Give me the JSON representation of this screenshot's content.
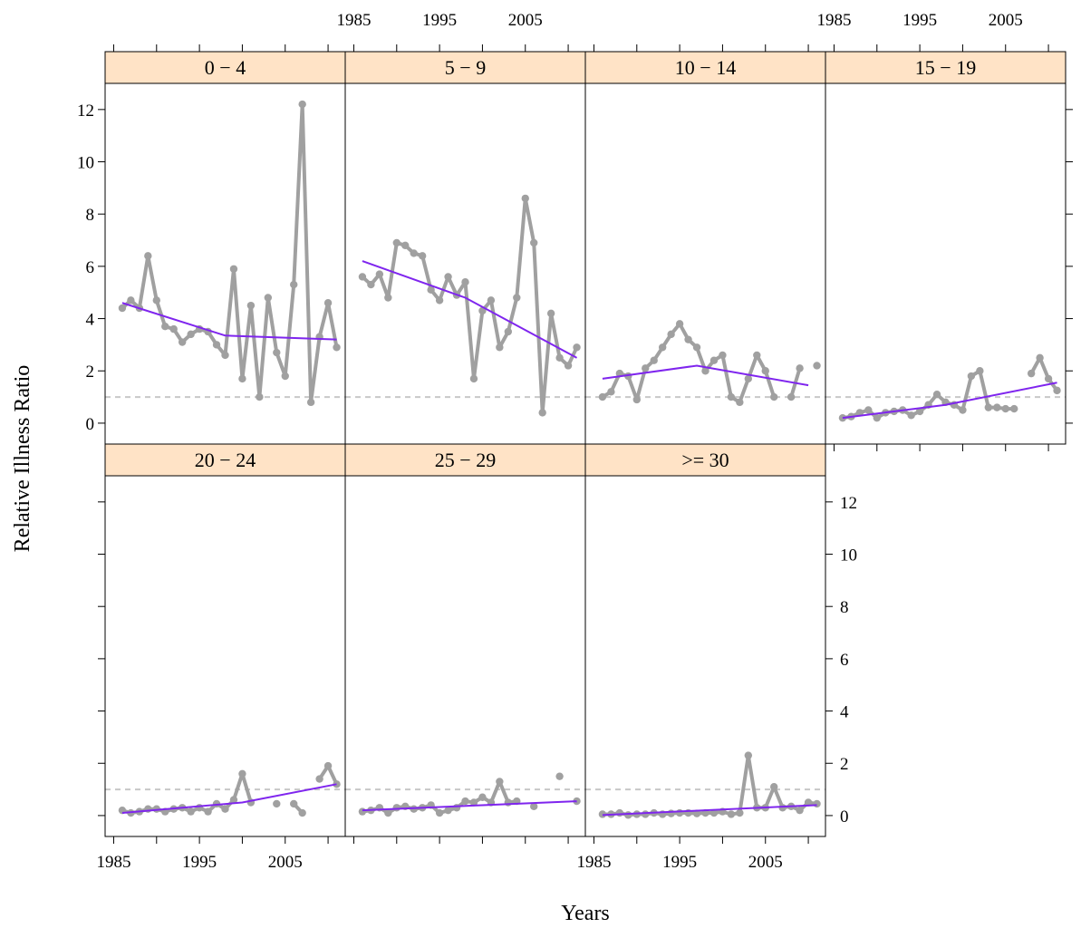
{
  "chart_data": {
    "type": "line",
    "layout": "lattice trellis, 4 columns x 2 rows, shared axes",
    "xlabel": "Years",
    "ylabel": "Relative Illness Ratio",
    "xlim": [
      1984,
      2012
    ],
    "ylim": [
      -0.8,
      13
    ],
    "x_ticks": [
      1985,
      1990,
      1995,
      2000,
      2005,
      2010
    ],
    "x_tick_labels": [
      "1985",
      "1995",
      "2005"
    ],
    "y_ticks": [
      0,
      2,
      4,
      6,
      8,
      10,
      12
    ],
    "y_tick_labels": [
      "0",
      "2",
      "4",
      "6",
      "8",
      "10",
      "12"
    ],
    "reference_line": 1,
    "colors": {
      "strip_background": "#ffe3c6",
      "observed_series": "#a0a0a0",
      "trend_series": "#7f25ee",
      "reference_line": "#c8c8c8"
    },
    "panels": [
      {
        "strip": "0 − 4",
        "x": [
          1986,
          1987,
          1988,
          1989,
          1990,
          1991,
          1992,
          1993,
          1994,
          1995,
          1996,
          1997,
          1998,
          1999,
          2000,
          2001,
          2002,
          2003,
          2004,
          2005,
          2006,
          2007,
          2008,
          2009,
          2010,
          2011
        ],
        "y": [
          4.4,
          4.7,
          4.4,
          6.4,
          4.7,
          3.7,
          3.6,
          3.1,
          3.4,
          3.6,
          3.5,
          3.0,
          2.6,
          5.9,
          1.7,
          4.5,
          1.0,
          4.8,
          2.7,
          1.8,
          5.3,
          12.2,
          0.8,
          3.3,
          4.6,
          2.9
        ],
        "trend_x": [
          1986,
          1998,
          2011
        ],
        "trend_y": [
          4.6,
          3.35,
          3.2
        ]
      },
      {
        "strip": "5 − 9",
        "x": [
          1986,
          1987,
          1988,
          1989,
          1990,
          1991,
          1992,
          1993,
          1994,
          1995,
          1996,
          1997,
          1998,
          1999,
          2000,
          2001,
          2002,
          2003,
          2004,
          2005,
          2006,
          2007,
          2008,
          2009,
          2010,
          2011
        ],
        "y": [
          5.6,
          5.3,
          5.7,
          4.8,
          6.9,
          6.8,
          6.5,
          6.4,
          5.1,
          4.7,
          5.6,
          4.9,
          5.4,
          1.7,
          4.3,
          4.7,
          2.9,
          3.5,
          4.8,
          8.6,
          6.9,
          0.4,
          4.2,
          2.5,
          2.2,
          2.9
        ],
        "trend_x": [
          1986,
          1998,
          2011
        ],
        "trend_y": [
          6.2,
          4.8,
          2.5
        ]
      },
      {
        "strip": "10 − 14",
        "x": [
          1986,
          1987,
          1988,
          1989,
          1990,
          1991,
          1992,
          1993,
          1994,
          1995,
          1996,
          1997,
          1998,
          1999,
          2000,
          2001,
          2002,
          2003,
          2004,
          2005,
          2006,
          2008,
          2009,
          2011
        ],
        "y": [
          1.0,
          1.2,
          1.9,
          1.8,
          0.9,
          2.1,
          2.4,
          2.9,
          3.4,
          3.8,
          3.2,
          2.9,
          2.0,
          2.4,
          2.6,
          1.0,
          0.8,
          1.7,
          2.6,
          2.0,
          1.0,
          1.0,
          2.1,
          2.2
        ],
        "trend_x": [
          1986,
          1997,
          2010
        ],
        "trend_y": [
          1.7,
          2.2,
          1.45
        ]
      },
      {
        "strip": "15 − 19",
        "x": [
          1986,
          1987,
          1988,
          1989,
          1990,
          1991,
          1992,
          1993,
          1994,
          1995,
          1996,
          1997,
          1998,
          1999,
          2000,
          2001,
          2002,
          2003,
          2004,
          2005,
          2006,
          2008,
          2009,
          2010,
          2011
        ],
        "y": [
          0.2,
          0.25,
          0.4,
          0.5,
          0.2,
          0.4,
          0.45,
          0.5,
          0.3,
          0.45,
          0.7,
          1.1,
          0.8,
          0.7,
          0.5,
          1.8,
          2.0,
          0.6,
          0.6,
          0.55,
          0.55,
          1.9,
          2.5,
          1.7,
          1.25
        ],
        "trend_x": [
          1986,
          1998,
          2011
        ],
        "trend_y": [
          0.2,
          0.7,
          1.55
        ]
      },
      {
        "strip": "20 − 24",
        "x": [
          1986,
          1987,
          1988,
          1989,
          1990,
          1991,
          1992,
          1993,
          1994,
          1995,
          1996,
          1997,
          1998,
          1999,
          2000,
          2001,
          2004,
          2006,
          2007,
          2009,
          2010,
          2011
        ],
        "y": [
          0.2,
          0.1,
          0.15,
          0.25,
          0.25,
          0.15,
          0.25,
          0.3,
          0.15,
          0.3,
          0.15,
          0.45,
          0.25,
          0.6,
          1.6,
          0.5,
          0.45,
          0.45,
          0.1,
          1.4,
          1.9,
          1.2
        ],
        "trend_x": [
          1986,
          2000,
          2011
        ],
        "trend_y": [
          0.1,
          0.5,
          1.2
        ]
      },
      {
        "strip": "25 − 29",
        "x": [
          1986,
          1987,
          1988,
          1989,
          1990,
          1991,
          1992,
          1993,
          1994,
          1995,
          1996,
          1997,
          1998,
          1999,
          2000,
          2001,
          2002,
          2003,
          2004,
          2006,
          2009,
          2011
        ],
        "y": [
          0.15,
          0.2,
          0.3,
          0.1,
          0.3,
          0.35,
          0.25,
          0.3,
          0.4,
          0.1,
          0.2,
          0.3,
          0.55,
          0.5,
          0.7,
          0.5,
          1.3,
          0.5,
          0.55,
          0.35,
          1.5,
          0.55
        ],
        "trend_x": [
          1986,
          2011
        ],
        "trend_y": [
          0.2,
          0.55
        ]
      },
      {
        "strip": ">= 30",
        "x": [
          1986,
          1987,
          1988,
          1989,
          1990,
          1991,
          1992,
          1993,
          1994,
          1995,
          1996,
          1997,
          1998,
          1999,
          2000,
          2001,
          2002,
          2003,
          2004,
          2005,
          2006,
          2007,
          2008,
          2009,
          2010,
          2011
        ],
        "y": [
          0.05,
          0.05,
          0.1,
          0.02,
          0.05,
          0.05,
          0.1,
          0.05,
          0.08,
          0.1,
          0.1,
          0.08,
          0.1,
          0.1,
          0.15,
          0.05,
          0.1,
          2.3,
          0.3,
          0.3,
          1.1,
          0.3,
          0.35,
          0.2,
          0.5,
          0.45
        ],
        "trend_x": [
          1986,
          2011
        ],
        "trend_y": [
          0.02,
          0.4
        ]
      }
    ]
  }
}
